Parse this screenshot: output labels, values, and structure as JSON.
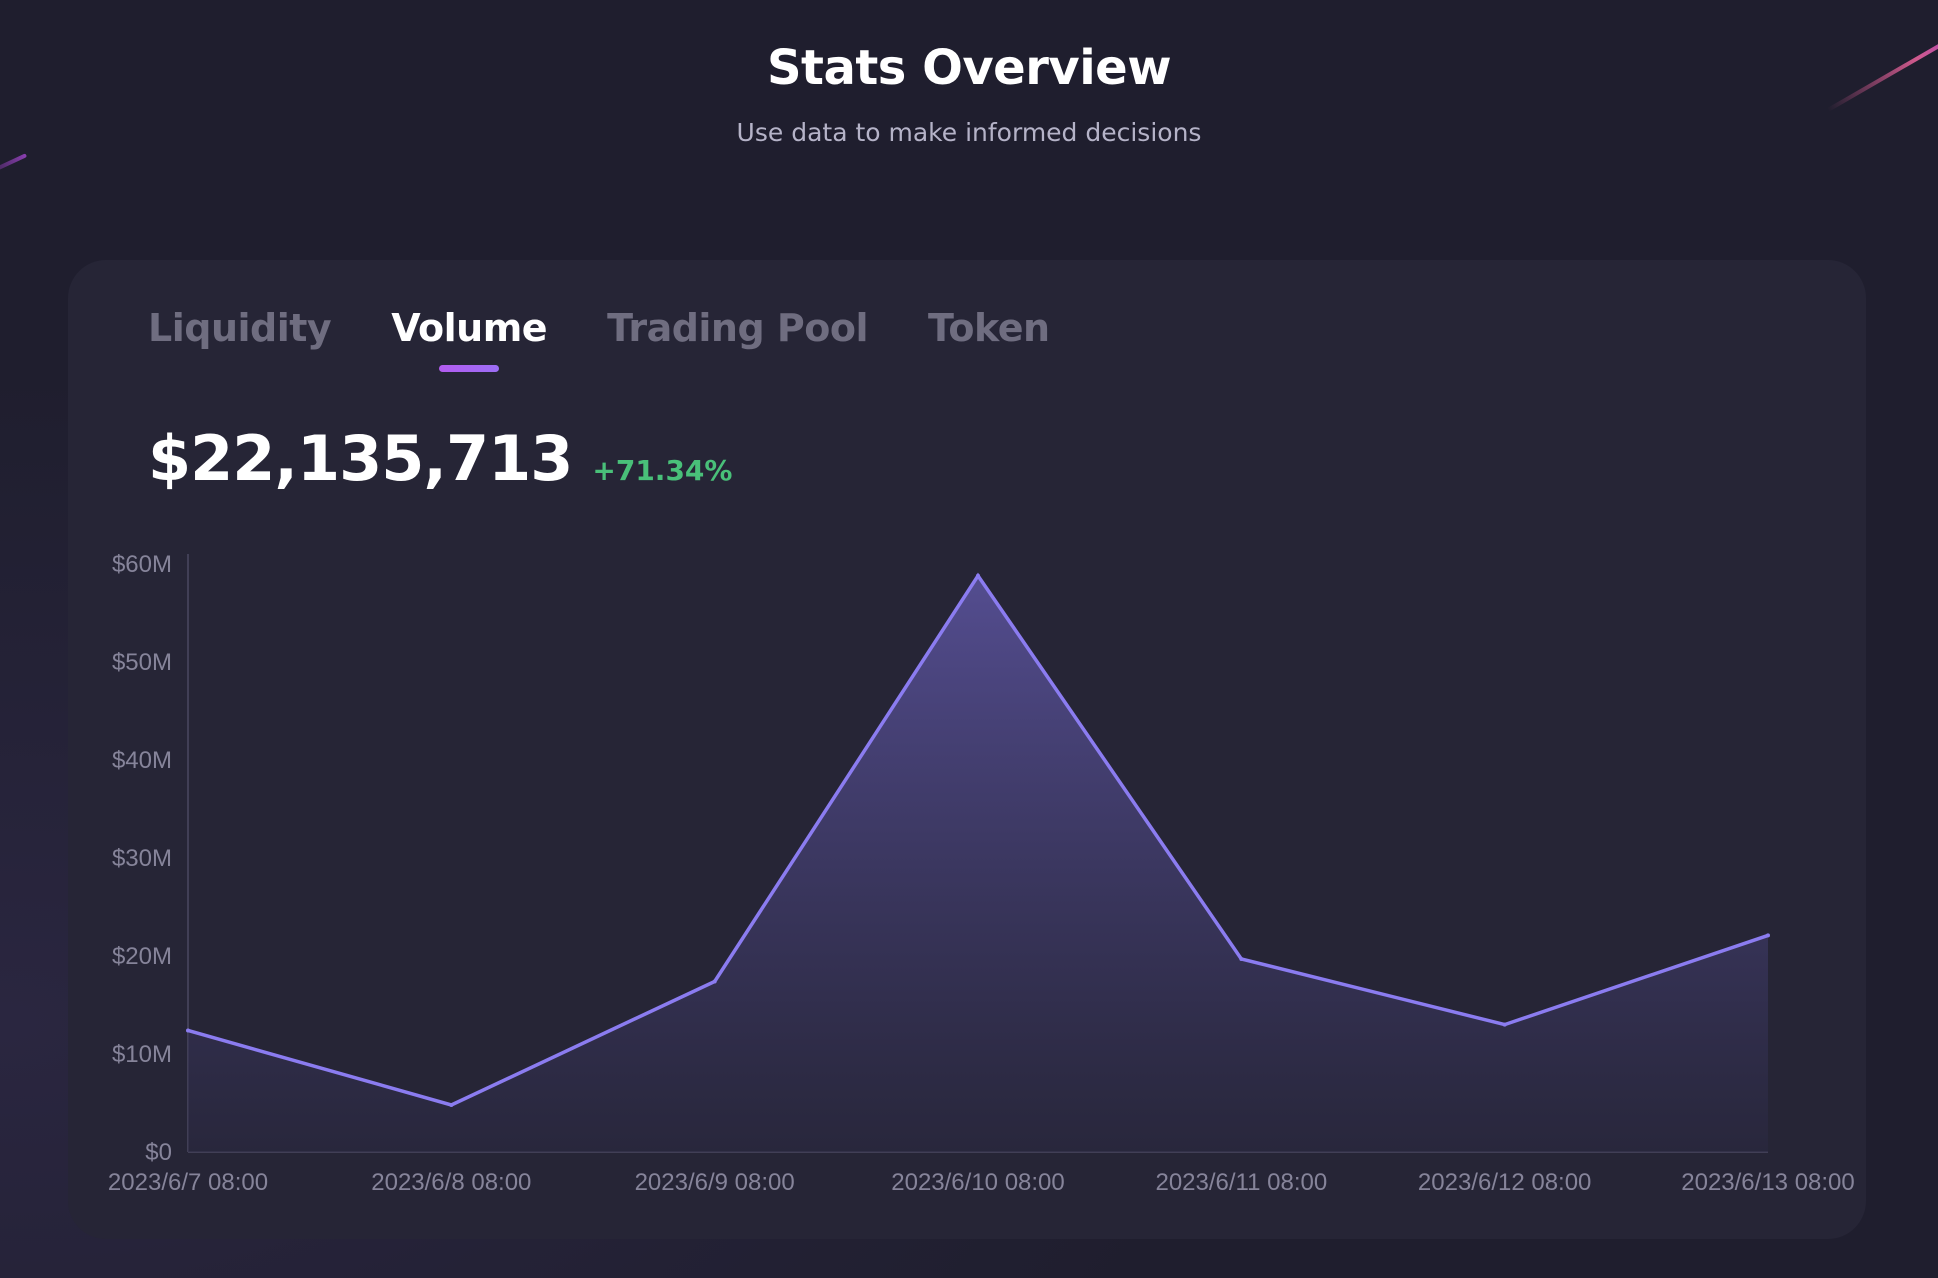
{
  "header": {
    "title": "Stats Overview",
    "subtitle": "Use data to make informed decisions"
  },
  "tabs": [
    {
      "label": "Liquidity",
      "active": false
    },
    {
      "label": "Volume",
      "active": true
    },
    {
      "label": "Trading Pool",
      "active": false
    },
    {
      "label": "Token",
      "active": false
    }
  ],
  "metric": {
    "value": "$22,135,713",
    "change": "+71.34%"
  },
  "colors": {
    "accent": "#8b7cf0",
    "positive": "#49c079",
    "tab_underline": "#b35cf0"
  },
  "chart_data": {
    "type": "area",
    "x": [
      "2023/6/7 08:00",
      "2023/6/8 08:00",
      "2023/6/9 08:00",
      "2023/6/10 08:00",
      "2023/6/11 08:00",
      "2023/6/12 08:00",
      "2023/6/13 08:00"
    ],
    "series": [
      {
        "values": [
          12.4,
          4.8,
          17.4,
          58.8,
          19.7,
          13.0,
          22.1
        ]
      }
    ],
    "y_unit": "M",
    "yticks": [
      "$0",
      "$10M",
      "$20M",
      "$30M",
      "$40M",
      "$50M",
      "$60M"
    ],
    "ylim": [
      0,
      60
    ],
    "grid": false,
    "legend": false
  }
}
